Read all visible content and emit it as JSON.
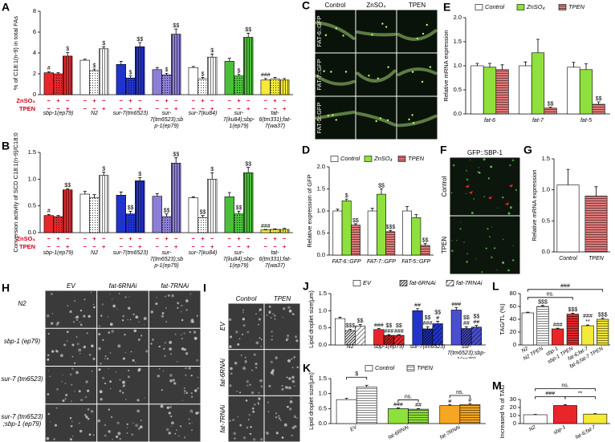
{
  "chart_data": [
    {
      "panel": "A",
      "type": "bar",
      "ylabel": "% of C18:1(n-9) in total FAs",
      "categories": [
        "sbp-1(ep79)",
        "N2",
        "sur-7(tm6523)",
        "sur-7(tm6523);sbp-1(ep79)",
        "sur-7(ku84)",
        "sur-7(ku84);sbp-1(ep79)",
        "fat-6(tm331);fat-7(wa37)"
      ],
      "colors": [
        "#e8262a",
        "#ffffff",
        "#2233cc",
        "#8c7fd6",
        "#ffffff",
        "#4bbf3a",
        "#f5e93a"
      ],
      "ylim": [
        0,
        8
      ],
      "yticks": [
        0,
        2,
        4,
        6,
        8
      ],
      "treatments": [
        {
          "name": "ZnSO₄",
          "signs": [
            "−",
            "+",
            "−"
          ]
        },
        {
          "name": "TPEN",
          "signs": [
            "−",
            "−",
            "+"
          ]
        }
      ],
      "series": [
        {
          "name": "Control",
          "style": "solid",
          "values": [
            2.1,
            3.3,
            2.9,
            2.4,
            2.6,
            3.2,
            1.4
          ],
          "errors": [
            0.1,
            0.1,
            0.3,
            0.2,
            0.1,
            0.3,
            0.15
          ],
          "markers": [
            "#",
            null,
            null,
            null,
            null,
            null,
            "###"
          ]
        },
        {
          "name": "ZnSO₄",
          "style": "dotted",
          "values": [
            2.0,
            2.3,
            1.6,
            1.9,
            1.5,
            1.8,
            1.5
          ],
          "errors": [
            0.1,
            0.15,
            0.2,
            0.15,
            0.15,
            0.15,
            0.15
          ],
          "markers": [
            null,
            "$",
            "$",
            "$",
            "$",
            "$",
            null
          ]
        },
        {
          "name": "TPEN",
          "style": "striped",
          "values": [
            3.7,
            4.4,
            4.6,
            5.8,
            3.6,
            5.5,
            1.4
          ],
          "errors": [
            0.35,
            0.2,
            0.4,
            0.5,
            0.3,
            0.4,
            0.15
          ],
          "markers": [
            "$",
            "$",
            "$$",
            "$$",
            "$",
            "$$",
            null
          ]
        }
      ]
    },
    {
      "panel": "B",
      "type": "bar",
      "ylabel": "Conversion activity of SCD C18:1(n-9)/C18:0",
      "categories": [
        "sbp-1(ep79)",
        "N2",
        "sur-7(tm6523)",
        "sur-7(tm6523);sbp-1(ep79)",
        "sur-7(ku84)",
        "sur-7(ku84);sbp-1(ep79)",
        "fat-6(tm331);fat-7(wa37)"
      ],
      "colors": [
        "#e8262a",
        "#ffffff",
        "#2233cc",
        "#8c7fd6",
        "#ffffff",
        "#4bbf3a",
        "#f5e93a"
      ],
      "ylim": [
        0,
        1.5
      ],
      "yticks": [
        {
          "value": 0,
          "label": "0.0"
        },
        0.5,
        {
          "value": 1,
          "label": "1.0"
        },
        1.5
      ],
      "treatments": [
        {
          "name": "ZnSO₄",
          "signs": [
            "−",
            "+",
            "−"
          ]
        },
        {
          "name": "TPEN",
          "signs": [
            "−",
            "−",
            "+"
          ]
        }
      ],
      "series": [
        {
          "name": "Control",
          "style": "solid",
          "values": [
            0.32,
            0.72,
            0.7,
            0.68,
            0.65,
            0.67,
            0.05
          ],
          "errors": [
            0.02,
            0.05,
            0.06,
            0.05,
            0.02,
            0.08,
            0.01
          ],
          "markers": [
            "#",
            null,
            null,
            null,
            null,
            null,
            "###"
          ]
        },
        {
          "name": "ZnSO₄",
          "style": "dotted",
          "values": [
            0.3,
            0.65,
            0.35,
            0.3,
            0.28,
            0.35,
            0.06
          ],
          "errors": [
            0.02,
            0.06,
            0.05,
            0.05,
            0.04,
            0.05,
            0.01
          ],
          "markers": [
            null,
            null,
            "$$",
            "$$",
            "$$",
            "$$",
            null
          ]
        },
        {
          "name": "TPEN",
          "style": "striped",
          "values": [
            0.8,
            1.07,
            0.97,
            1.3,
            1.0,
            1.12,
            0.06
          ],
          "errors": [
            0.02,
            0.06,
            0.06,
            0.1,
            0.12,
            0.1,
            0.02
          ],
          "markers": [
            "$$",
            "$",
            "$",
            "$$",
            "$",
            "$$",
            null
          ]
        }
      ]
    },
    {
      "panel": "D",
      "type": "bar",
      "ylabel": "Relative expression of GFP",
      "legend": "top",
      "categories": [
        "FAT-6::GFP",
        "FAT-7::GFP",
        "FAT-5::GFP"
      ],
      "ylim": [
        0,
        2
      ],
      "yticks": [
        {
          "value": 0,
          "label": "0.0"
        },
        0.5,
        {
          "value": 1,
          "label": "1.0"
        },
        1.5,
        {
          "value": 2,
          "label": "2.0"
        }
      ],
      "series": [
        {
          "name": "Control",
          "color": "#ffffff",
          "style": "solid",
          "values": [
            1.0,
            1.0,
            1.0
          ],
          "errors": [
            0.04,
            0.06,
            0.1
          ]
        },
        {
          "name": "ZnSO₄",
          "color": "#8ee03c",
          "style": "solid",
          "values": [
            1.23,
            1.38,
            0.85
          ],
          "errors": [
            0.04,
            0.12,
            0.07
          ],
          "markers": [
            "$",
            "$$",
            null
          ]
        },
        {
          "name": "TPEN",
          "color": "#e07a7a",
          "style": "hlined",
          "values": [
            0.68,
            0.53,
            0.22
          ],
          "errors": [
            0.03,
            0.03,
            0.04
          ],
          "markers": [
            "$$",
            "$$$",
            "$$"
          ]
        }
      ]
    },
    {
      "panel": "E",
      "type": "bar",
      "ylabel": "Relative mRNA expression",
      "legend": "top",
      "categories": [
        "fat-6",
        "fat-7",
        "fat-5"
      ],
      "ylim": [
        0,
        2
      ],
      "yticks": [
        {
          "value": 0,
          "label": "0.0"
        },
        0.5,
        {
          "value": 1,
          "label": "1.0"
        },
        1.5,
        {
          "value": 2,
          "label": "2.0"
        }
      ],
      "series": [
        {
          "name": "Control",
          "color": "#ffffff",
          "style": "solid",
          "values": [
            1.0,
            1.0,
            0.97
          ],
          "errors": [
            0.05,
            0.08,
            0.1
          ]
        },
        {
          "name": "ZnSO₄",
          "color": "#8ee03c",
          "style": "solid",
          "values": [
            0.97,
            1.27,
            0.92
          ],
          "errors": [
            0.08,
            0.28,
            0.12
          ]
        },
        {
          "name": "TPEN",
          "color": "#e07a7a",
          "style": "hlined",
          "values": [
            0.92,
            0.12,
            0.2
          ],
          "errors": [
            0.1,
            0.02,
            0.05
          ],
          "markers": [
            null,
            "$$",
            "$$"
          ]
        }
      ]
    },
    {
      "panel": "G",
      "type": "bar",
      "ylabel": "Relative mRNA expression",
      "categories": [
        "Control",
        "TPEN"
      ],
      "colors": [
        "#ffffff",
        "#e07a7a"
      ],
      "styles": [
        "solid",
        "hlined"
      ],
      "ylim": [
        0,
        1.5
      ],
      "yticks": [
        {
          "value": 0,
          "label": "0.0"
        },
        0.5,
        {
          "value": 1,
          "label": "1.0"
        },
        1.5
      ],
      "series": [
        {
          "values": [
            1.08,
            0.9
          ],
          "errors": [
            0.25,
            0.15
          ]
        }
      ]
    },
    {
      "panel": "J",
      "type": "bar",
      "ylabel": "Lipid droplet size(μm)",
      "legend": "top",
      "categories": [
        "N2",
        "sbp-1(ep79)",
        "sur-7(tm6523)",
        "sur-7(tm6523);sbp-1(ep79)"
      ],
      "colors": [
        "#ffffff",
        "#e8262a",
        "#2233cc",
        "#4a4fd0"
      ],
      "ylim": [
        0,
        1.5
      ],
      "yticks": [
        {
          "value": 0,
          "label": "0.0"
        },
        0.5,
        {
          "value": 1,
          "label": "1.0"
        },
        1.5
      ],
      "series": [
        {
          "name": "EV",
          "style": "solid",
          "values": [
            0.77,
            0.45,
            1.0,
            1.02
          ],
          "errors": [
            0.04,
            0.03,
            0.06,
            0.07
          ],
          "markers": [
            null,
            "###",
            "##",
            "###"
          ]
        },
        {
          "name": "fat-6RNAi",
          "style": "hatched-dense",
          "values": [
            0.42,
            0.28,
            0.47,
            0.48
          ],
          "errors": [
            0.04,
            0.02,
            0.06,
            0.05
          ],
          "markers": [
            "$$$",
            [
              "$$",
              "###"
            ],
            [
              "$$",
              "###"
            ],
            [
              "$$",
              "##"
            ]
          ]
        },
        {
          "name": "fat-7RNAi",
          "style": "hatched",
          "values": [
            0.55,
            0.28,
            0.62,
            0.52
          ],
          "errors": [
            0.05,
            0.02,
            0.07,
            0.05
          ],
          "markers": [
            "$$",
            [
              "$$",
              "###"
            ],
            [
              "$$",
              "#"
            ],
            [
              "$$",
              "##"
            ]
          ]
        }
      ]
    },
    {
      "panel": "K",
      "type": "bar",
      "ylabel": "Lipid droplet size(μm)",
      "legend": "top",
      "categories": [
        "EV",
        "fat-6RNAi",
        "fat-7RNAi"
      ],
      "colors": [
        "#ffffff",
        "#8ee03c",
        "#f5a623"
      ],
      "ylim": [
        0,
        1.5
      ],
      "yticks": [
        {
          "value": 0,
          "label": "0.0"
        },
        0.5,
        {
          "value": 1,
          "label": "1.0"
        },
        1.5
      ],
      "series": [
        {
          "name": "Control",
          "style": "solid",
          "values": [
            0.8,
            0.5,
            0.6
          ],
          "errors": [
            0.04,
            0.02,
            0.03
          ],
          "markers": [
            null,
            "###",
            "#"
          ]
        },
        {
          "name": "TPEN",
          "style": "hlined",
          "values": [
            1.22,
            0.48,
            0.63
          ],
          "errors": [
            0.06,
            0.02,
            0.04
          ],
          "markers": [
            null,
            "##",
            "#"
          ]
        }
      ],
      "brackets": [
        {
          "label": "$",
          "over": "EV"
        },
        {
          "label": "ns.",
          "over": "fat-6RNAi"
        },
        {
          "label": "ns.",
          "over": "fat-7RNAi"
        }
      ]
    },
    {
      "panel": "L",
      "type": "bar",
      "ylabel": "TAG/TL (%)",
      "categories": [
        "N2",
        "N2 TPEN",
        "sbp-1",
        "sbp-1 TPEN",
        "fat-6;fat-7",
        "fat-6;fat-7 TPEN"
      ],
      "colors": [
        "#ffffff",
        "#ffffff",
        "#e8262a",
        "#e8262a",
        "#f5e93a",
        "#f5e93a"
      ],
      "styles": [
        "solid",
        "hlined",
        "solid",
        "hlined",
        "solid",
        "hlined"
      ],
      "ylim": [
        0,
        80
      ],
      "yticks": [
        0,
        20,
        40,
        60,
        80
      ],
      "series": [
        {
          "values": [
            50,
            60,
            25,
            48,
            30,
            40
          ],
          "errors": [
            1,
            1.5,
            1,
            1.5,
            1,
            1.5
          ],
          "markers": [
            null,
            "$$$",
            "###",
            "$$$",
            [
              "###",
              "**"
            ],
            "$$$"
          ]
        }
      ],
      "brackets": [
        {
          "label": "ns.",
          "between": [
            "N2",
            "sbp-1 TPEN"
          ]
        },
        {
          "label": "###",
          "between": [
            "N2",
            "fat-6;fat-7 TPEN"
          ]
        }
      ]
    },
    {
      "panel": "M",
      "type": "bar",
      "ylabel": "Increased % of TAG",
      "categories": [
        "N2",
        "sbp-1",
        "fat-6;fat-7"
      ],
      "colors": [
        "#ffffff",
        "#e8262a",
        "#f5e93a"
      ],
      "ylim": [
        0,
        30
      ],
      "yticks": [
        0,
        10,
        20,
        30
      ],
      "series": [
        {
          "values": [
            11,
            22.5,
            11.8
          ],
          "errors": [
            0.5,
            1,
            0.5
          ]
        }
      ],
      "brackets": [
        {
          "label": "###",
          "between": [
            "N2",
            "sbp-1"
          ]
        },
        {
          "label": "**",
          "between": [
            "sbp-1",
            "fat-6;fat-7"
          ]
        },
        {
          "label": "ns.",
          "between": [
            "N2",
            "fat-6;fat-7"
          ]
        }
      ]
    }
  ],
  "images": [
    {
      "panel": "C",
      "columns": [
        "Control",
        "ZnSO₄",
        "TPEN"
      ],
      "rows": [
        "FAT-6::GFP",
        "FAT-7::GFP",
        "FAT-5::GFP"
      ]
    },
    {
      "panel": "F",
      "title": "GFP::SBP-1",
      "rows": [
        "Control",
        "TPEN"
      ]
    },
    {
      "panel": "H",
      "columns": [
        "EV",
        "fat-6RNAi",
        "fat-7RNAi"
      ],
      "rows": [
        "N2",
        "sbp-1 (ep79)",
        "sur-7 (tm6523)",
        "sur-7 (tm6523) ;sbp-1 (ep79)"
      ]
    },
    {
      "panel": "I",
      "columns": [
        "Control",
        "TPEN"
      ],
      "rows": [
        "EV",
        "fat-6RNAi",
        "fat-7RNAi"
      ]
    }
  ]
}
